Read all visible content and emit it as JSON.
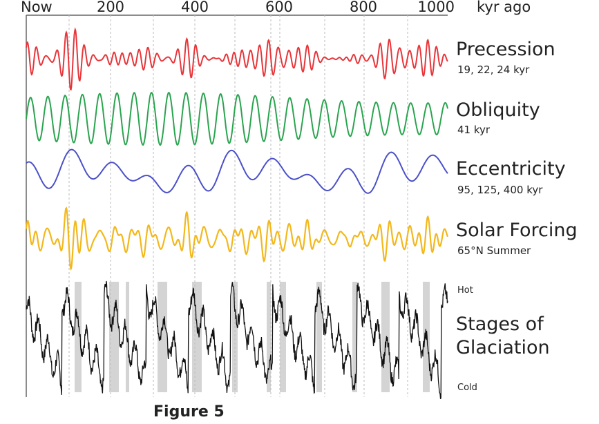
{
  "figure": {
    "axis": {
      "ticks": [
        {
          "value": 0,
          "label": "Now"
        },
        200,
        400,
        600,
        800,
        1000
      ],
      "unit": "kyr ago"
    },
    "rows": [
      {
        "label": "Precession",
        "sublabel": "19, 22, 24 kyr"
      },
      {
        "label": "Obliquity",
        "sublabel": "41 kyr"
      },
      {
        "label": "Eccentricity",
        "sublabel": "95, 125, 400 kyr"
      },
      {
        "label": "Solar Forcing",
        "sublabel": "65°N Summer"
      }
    ],
    "glaciation": {
      "label_line1": "Stages of",
      "label_line2": "Glaciation",
      "hot": "Hot",
      "cold": "Cold"
    },
    "caption": "Figure 5"
  }
}
